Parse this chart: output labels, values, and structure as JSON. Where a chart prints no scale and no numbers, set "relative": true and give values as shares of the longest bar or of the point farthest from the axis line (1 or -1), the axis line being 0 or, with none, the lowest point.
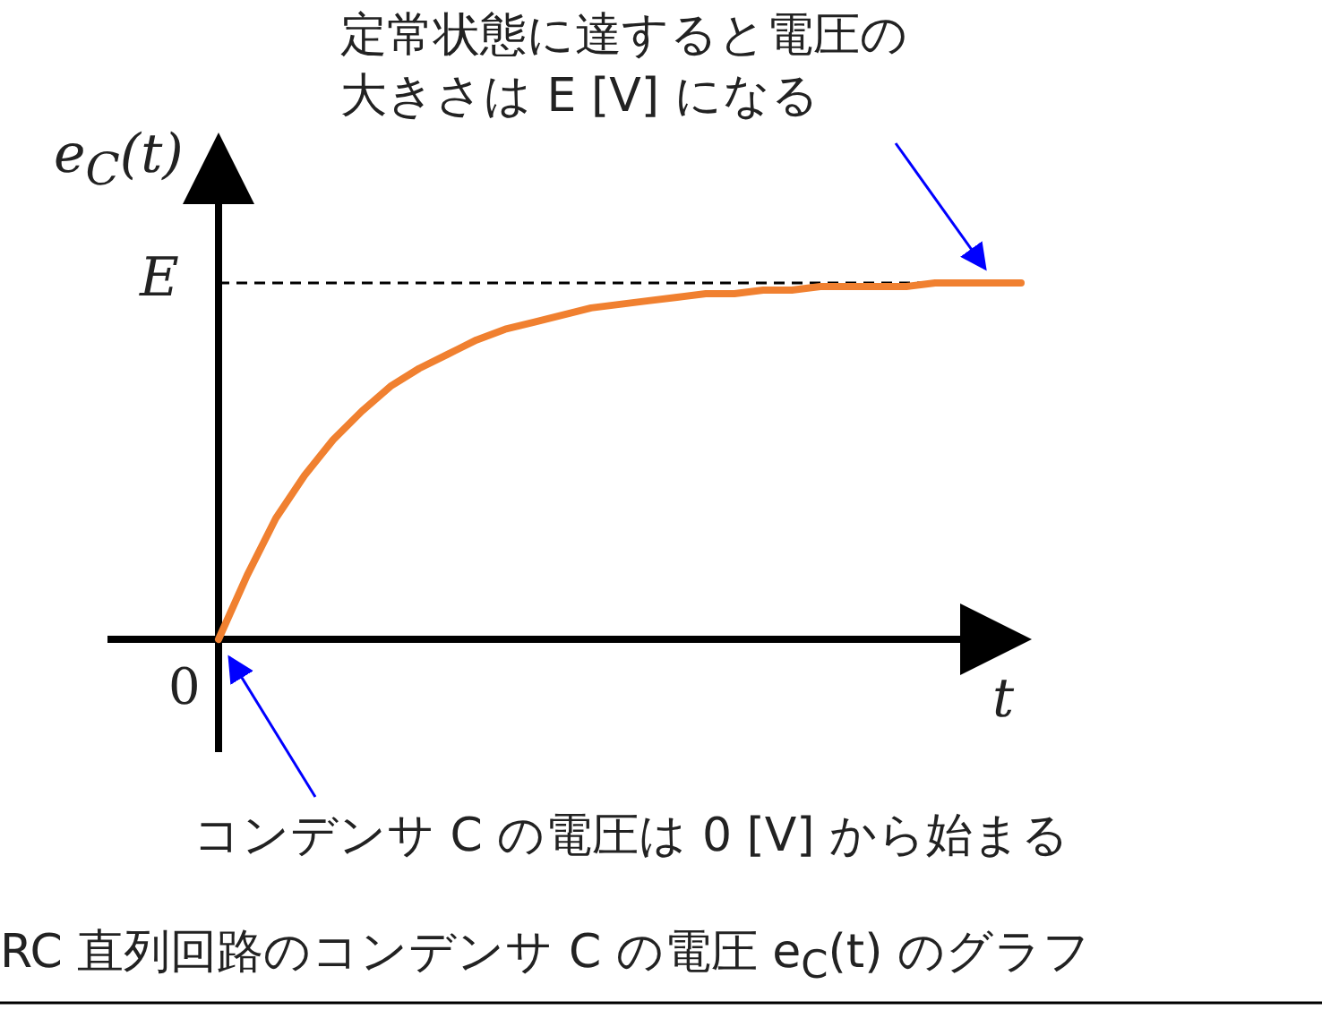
{
  "chart_data": {
    "type": "line",
    "relative": true,
    "title": "RC 直列回路のコンデンサ C の電圧 e$_{C}$(t) のグラフ",
    "ylabel": "e$_{C}$(t)",
    "xlabel": "t",
    "categories": [
      null,
      null,
      null,
      null,
      null,
      null,
      null,
      null,
      null,
      null,
      null,
      null,
      null,
      null,
      null,
      null,
      null,
      null,
      null,
      null,
      null,
      null,
      null,
      null,
      null,
      null,
      null,
      null,
      null
    ],
    "series": [
      {
        "color": "#f08030",
        "values": [
          0,
          0.18,
          0.34,
          0.46,
          0.56,
          0.64,
          0.71,
          0.76,
          0.8,
          0.84,
          0.87,
          0.89,
          0.91,
          0.93,
          0.94,
          0.95,
          0.96,
          0.97,
          0.97,
          0.98,
          0.98,
          0.99,
          0.99,
          0.99,
          0.99,
          1,
          1,
          1,
          1
        ]
      }
    ],
    "ref_lines": [
      {
        "axis": "y",
        "value": 1,
        "label": "E",
        "color": "#000000",
        "line_style": "dashed"
      }
    ],
    "annotations": [
      "0",
      "定常状態に達すると電圧の大きさは E [V] になる",
      "コンデンサ C の電圧は 0 [V] から始まる"
    ]
  }
}
